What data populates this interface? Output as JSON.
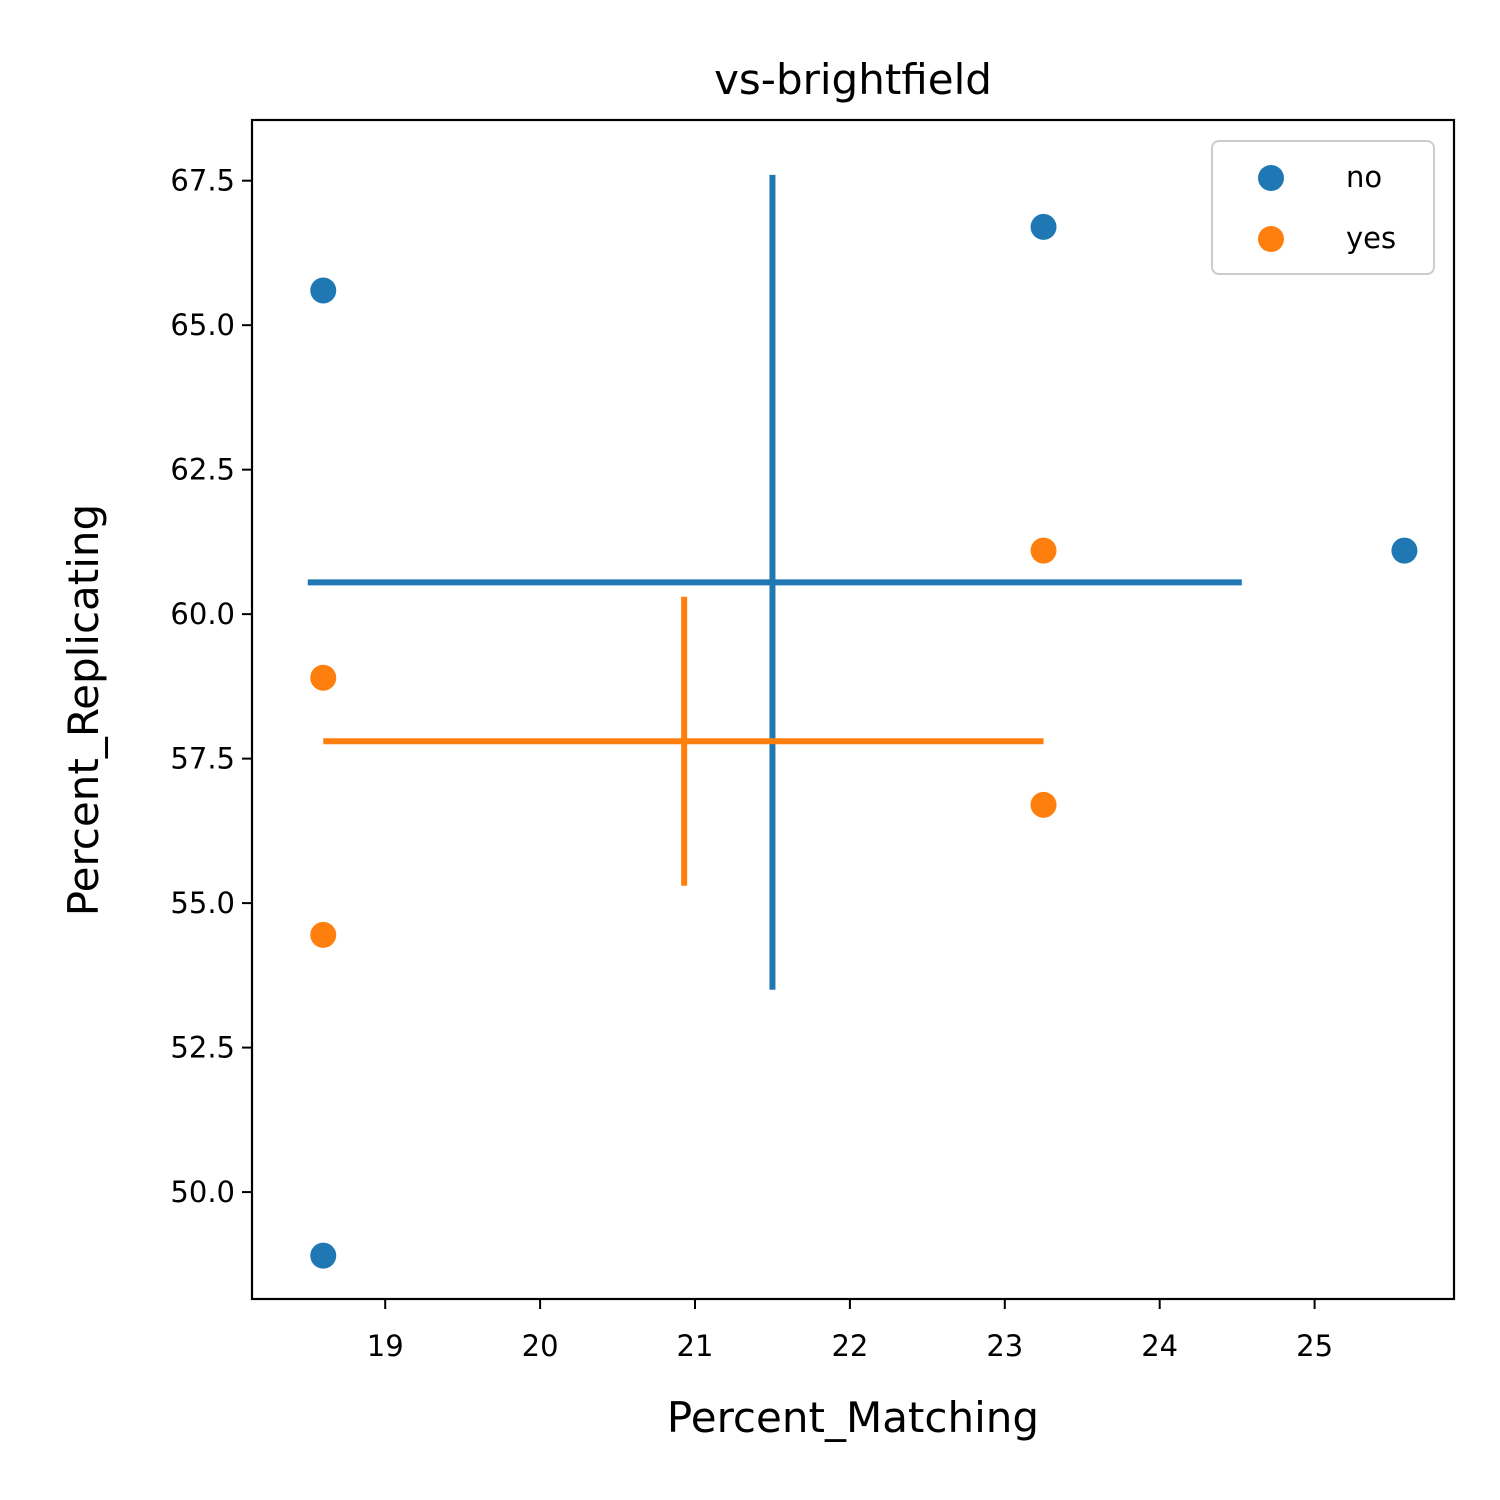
{
  "chart_data": {
    "type": "scatter",
    "title": "vs-brightfield",
    "xlabel": "Percent_Matching",
    "ylabel": "Percent_Replicating",
    "xlim": [
      18.14,
      25.9
    ],
    "ylim": [
      48.15,
      68.55
    ],
    "xticks": [
      19,
      20,
      21,
      22,
      23,
      24,
      25
    ],
    "xtick_labels": [
      "19",
      "20",
      "21",
      "22",
      "23",
      "24",
      "25"
    ],
    "yticks": [
      50.0,
      52.5,
      55.0,
      57.5,
      60.0,
      62.5,
      65.0,
      67.5
    ],
    "ytick_labels": [
      "50.0",
      "52.5",
      "55.0",
      "57.5",
      "60.0",
      "62.5",
      "65.0",
      "67.5"
    ],
    "grid": false,
    "legend_position": "upper right",
    "series": [
      {
        "name": "no",
        "color": "#1f77b4",
        "points": [
          {
            "x": 18.6,
            "y": 65.6
          },
          {
            "x": 23.25,
            "y": 66.7
          },
          {
            "x": 25.58,
            "y": 61.1
          },
          {
            "x": 18.6,
            "y": 48.9
          }
        ],
        "crosshair": {
          "x_min": 18.5,
          "x_max": 24.53,
          "y_at": 60.55,
          "y_min": 53.5,
          "y_max": 67.6,
          "x_at": 21.5
        }
      },
      {
        "name": "yes",
        "color": "#ff7f0e",
        "points": [
          {
            "x": 23.25,
            "y": 61.1
          },
          {
            "x": 18.6,
            "y": 58.9
          },
          {
            "x": 23.25,
            "y": 56.7
          },
          {
            "x": 18.6,
            "y": 54.45
          }
        ],
        "crosshair": {
          "x_min": 18.6,
          "x_max": 23.25,
          "y_at": 57.8,
          "y_min": 55.3,
          "y_max": 60.3,
          "x_at": 20.93
        }
      }
    ]
  }
}
